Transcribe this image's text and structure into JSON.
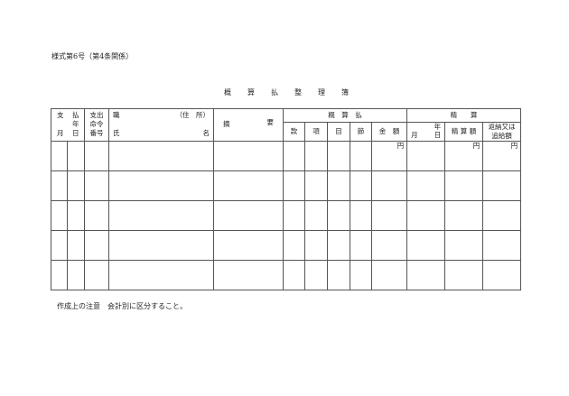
{
  "form_number": "様式第6号（第4条関係）",
  "title": "概算払整理簿",
  "headers": {
    "payment_date": {
      "shi": "支",
      "harai": "払",
      "year": "年",
      "month": "月",
      "day": "日"
    },
    "order_number": [
      "支出",
      "命令",
      "番号"
    ],
    "name": {
      "shoku": "職",
      "address": "（住　所）",
      "shi": "氏",
      "mei": "名"
    },
    "summary": {
      "teki": "摘",
      "you": "要"
    },
    "advance": {
      "label": "概　算　払",
      "cols": [
        "款",
        "項",
        "目",
        "節",
        "金　額"
      ]
    },
    "settlement": {
      "label": "精　　算",
      "year": "年",
      "month": "月",
      "day": "日",
      "amount": "精 算 額",
      "refund": [
        "返納又は",
        "追給額"
      ]
    }
  },
  "yen": "円",
  "row_count": 5,
  "note": "作成上の注意　会計別に区分すること。"
}
